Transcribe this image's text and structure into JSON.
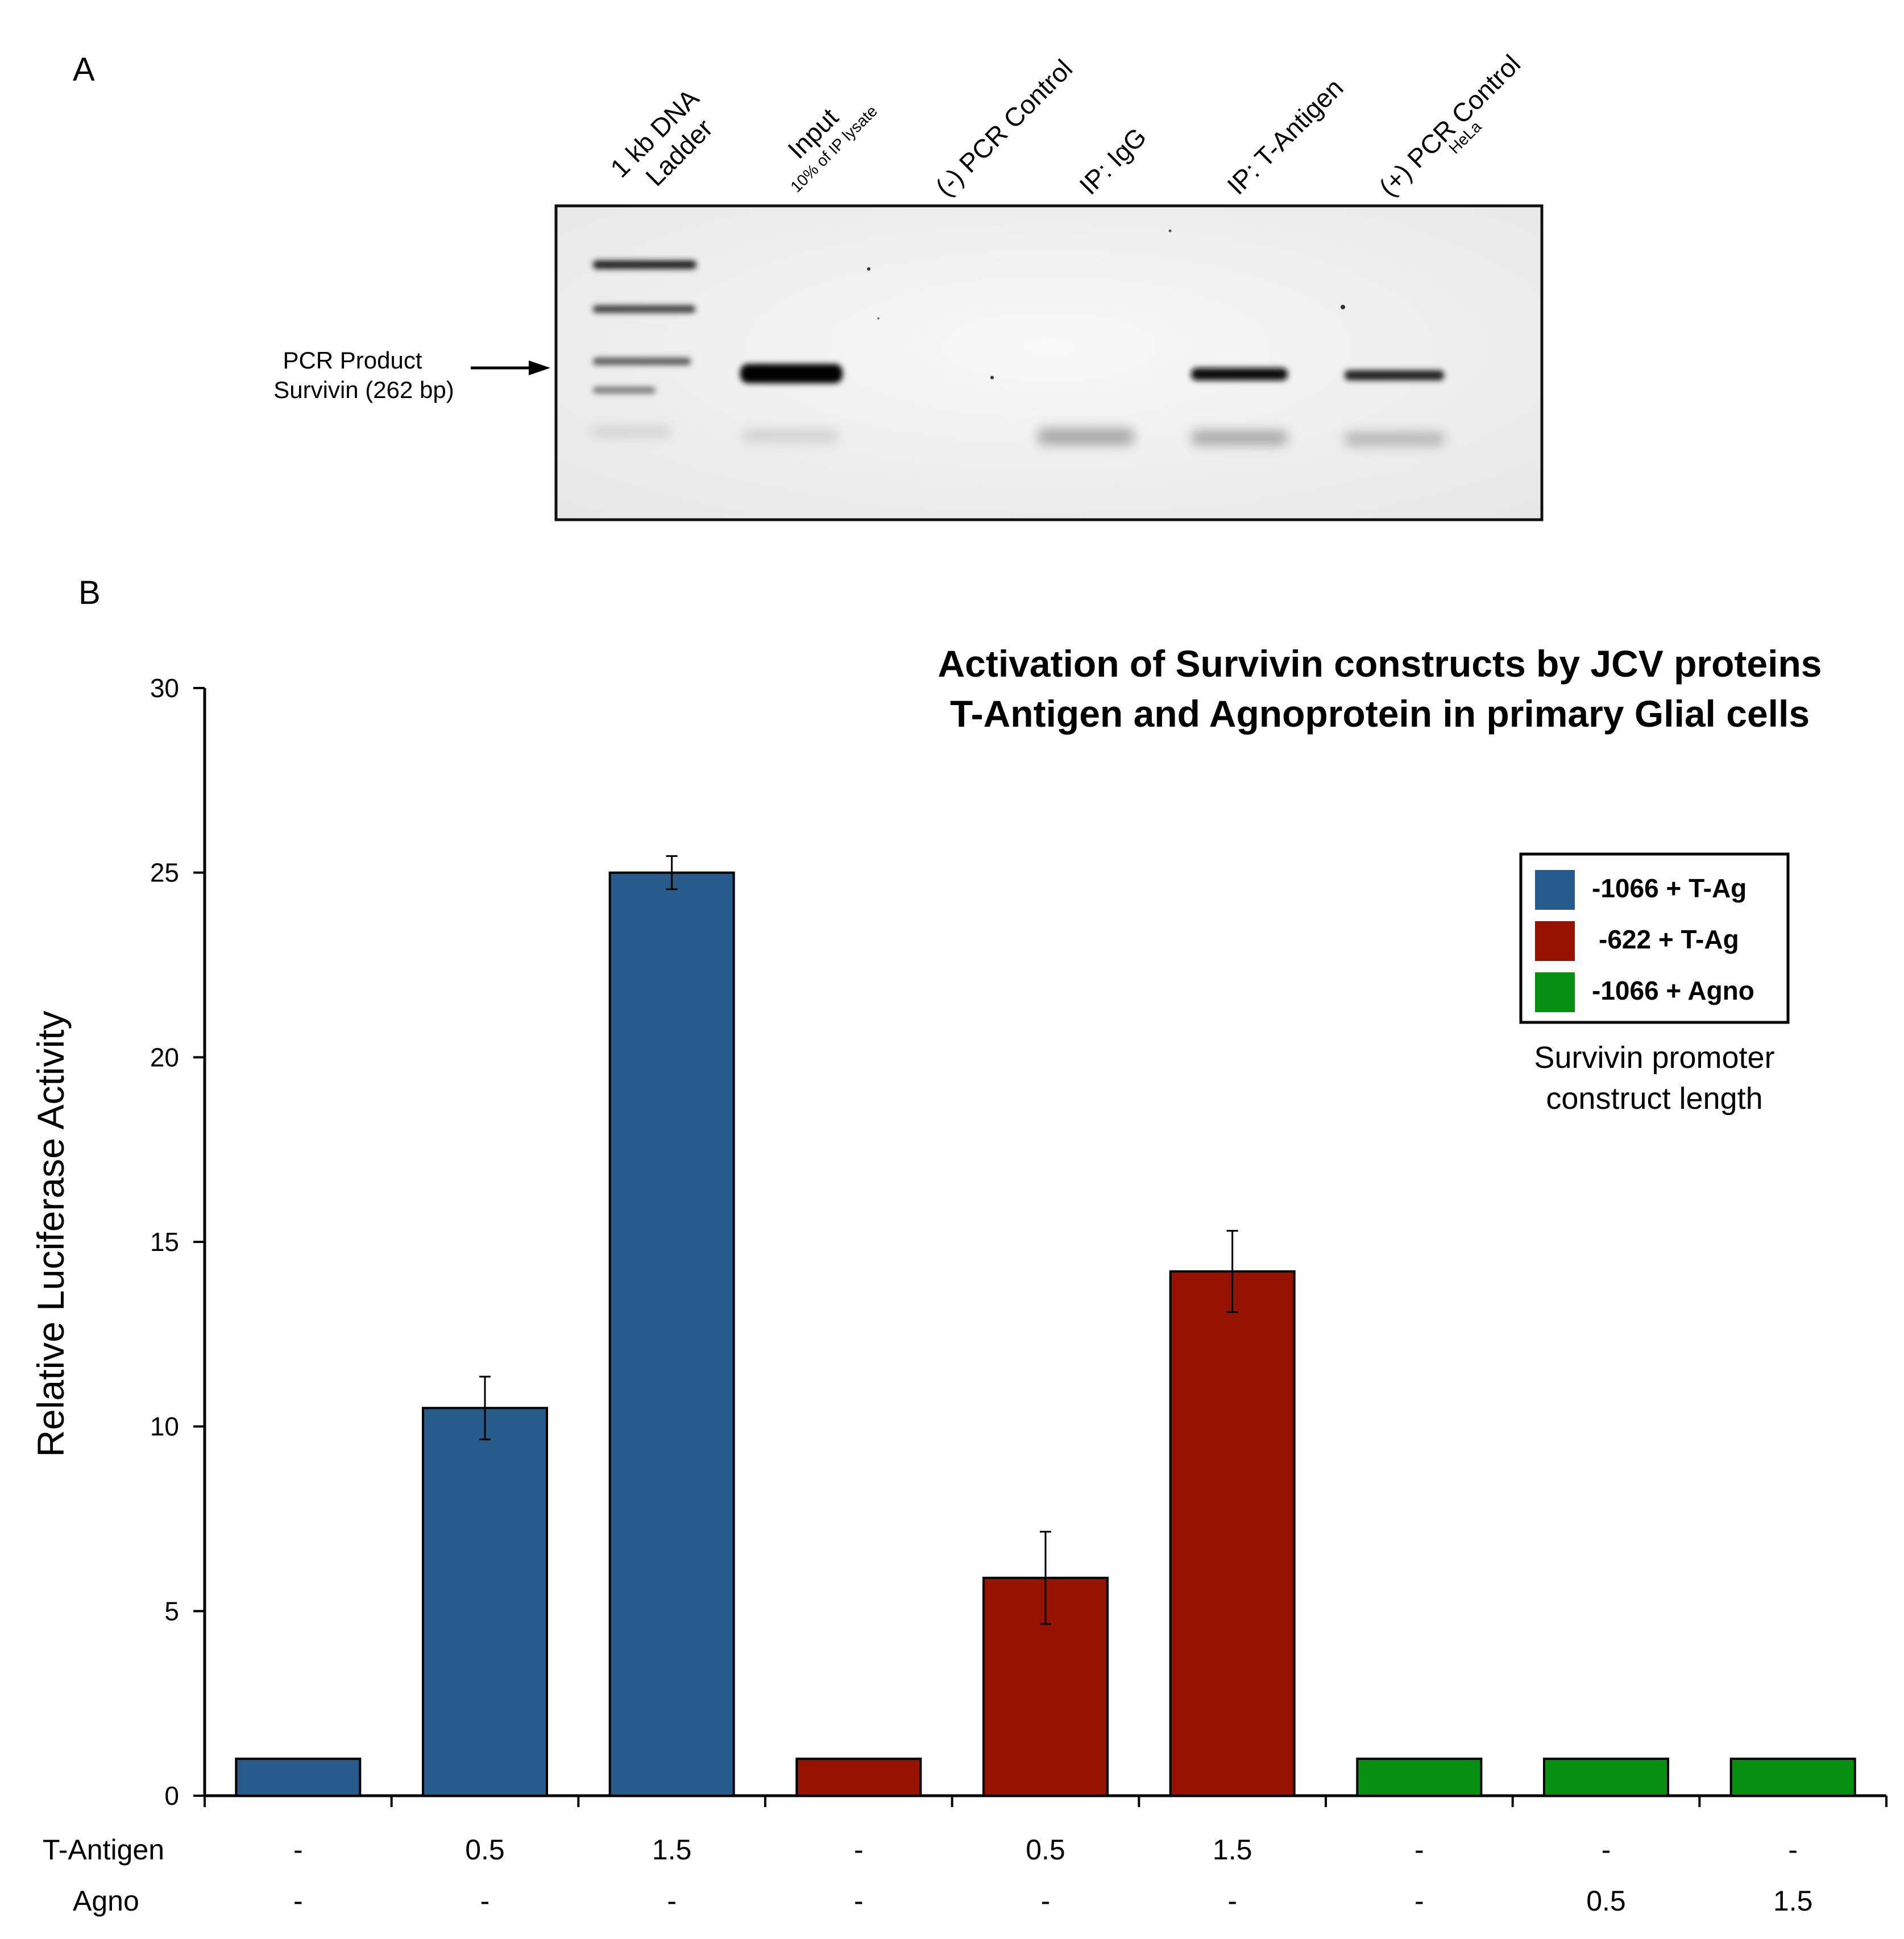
{
  "panel_a": {
    "letter": "A",
    "lanes": [
      {
        "line1": "1 kb DNA",
        "line2": "Ladder"
      },
      {
        "line1": "Input",
        "line2": "10% of IP lysate"
      },
      {
        "line1": "(-) PCR Control",
        "line2": ""
      },
      {
        "line1": "IP: IgG",
        "line2": ""
      },
      {
        "line1": "IP: T-Antigen",
        "line2": ""
      },
      {
        "line1": "(+) PCR Control",
        "line2": "HeLa"
      }
    ],
    "pcr_label_line1": "PCR Product",
    "pcr_label_line2": "Survivin (262 bp)"
  },
  "panel_b": {
    "letter": "B"
  },
  "chart_data": {
    "type": "bar",
    "title_line1": "Activation of Survivin constructs by JCV proteins",
    "title_line2": "T-Antigen and Agnoprotein in primary Glial cells",
    "ylabel": "Relative  Luciferase  Activity",
    "ylim": [
      0,
      30
    ],
    "yticks": [
      "0",
      "5",
      "10",
      "15",
      "20",
      "25",
      "30"
    ],
    "bars": [
      {
        "series": 0,
        "value": 1.0,
        "error": null
      },
      {
        "series": 0,
        "value": 10.5,
        "error": 0.85
      },
      {
        "series": 0,
        "value": 25.0,
        "error": 0.45
      },
      {
        "series": 1,
        "value": 1.0,
        "error": null
      },
      {
        "series": 1,
        "value": 5.9,
        "error": 1.25
      },
      {
        "series": 1,
        "value": 14.2,
        "error": 1.1
      },
      {
        "series": 2,
        "value": 1.0,
        "error": null
      },
      {
        "series": 2,
        "value": 1.0,
        "error": null
      },
      {
        "series": 2,
        "value": 1.0,
        "error": null
      }
    ],
    "series": [
      {
        "name": "-1066 + T-Ag",
        "color": "#265b8c"
      },
      {
        "name": "-622 + T-Ag",
        "color": "#961300"
      },
      {
        "name": "-1066 + Agno",
        "color": "#06900f"
      }
    ],
    "legend_caption_line1": "Survivin promoter",
    "legend_caption_line2": "construct length",
    "conditions": {
      "tantigen_label": "T-Antigen",
      "tantigen": [
        "-",
        "0.5",
        "1.5",
        "-",
        "0.5",
        "1.5",
        "-",
        "-",
        "-"
      ],
      "agno_label": "Agno",
      "agno": [
        "-",
        "-",
        "-",
        "-",
        "-",
        "-",
        "-",
        "0.5",
        "1.5"
      ]
    }
  }
}
